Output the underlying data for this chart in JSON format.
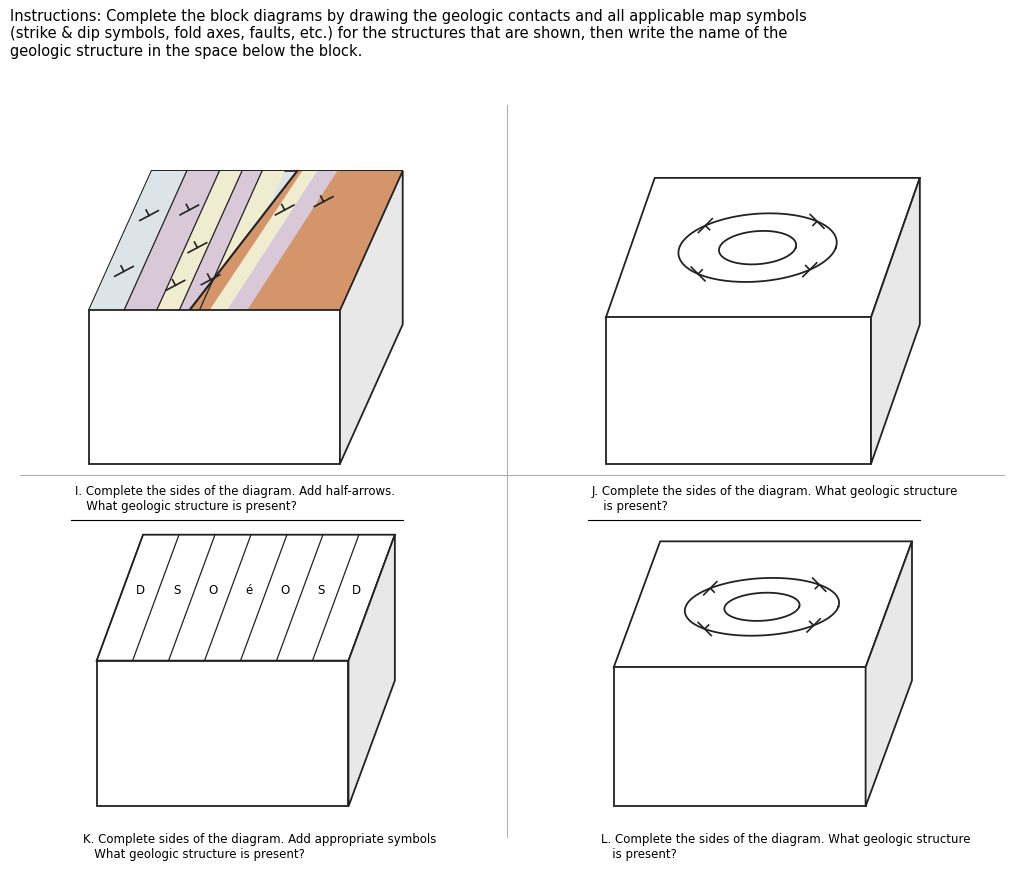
{
  "bg_color": "#ffffff",
  "title": "Instructions: Complete the block diagrams by drawing the geologic contacts and all applicable map symbols\n(strike & dip symbols, fold axes, faults, etc.) for the structures that are shown, then write the name of the\ngeologic structure in the space below the block.",
  "title_fontsize": 10.5,
  "label_I": "I. Complete the sides of the diagram. Add half-arrows.\n   What geologic structure is present?",
  "label_J": "J. Complete the sides of the diagram. What geologic structure\n   is present?",
  "label_K": "K. Complete sides of the diagram. Add appropriate symbols\n   What geologic structure is present?",
  "label_L": "L. Complete the sides of the diagram. What geologic structure\n   is present?",
  "colors": {
    "white_layer": "#dde4e8",
    "lavender_layer": "#d8c8d8",
    "cream_layer": "#f0ecd0",
    "orange_layer": "#d4956a",
    "line": "#222222"
  }
}
